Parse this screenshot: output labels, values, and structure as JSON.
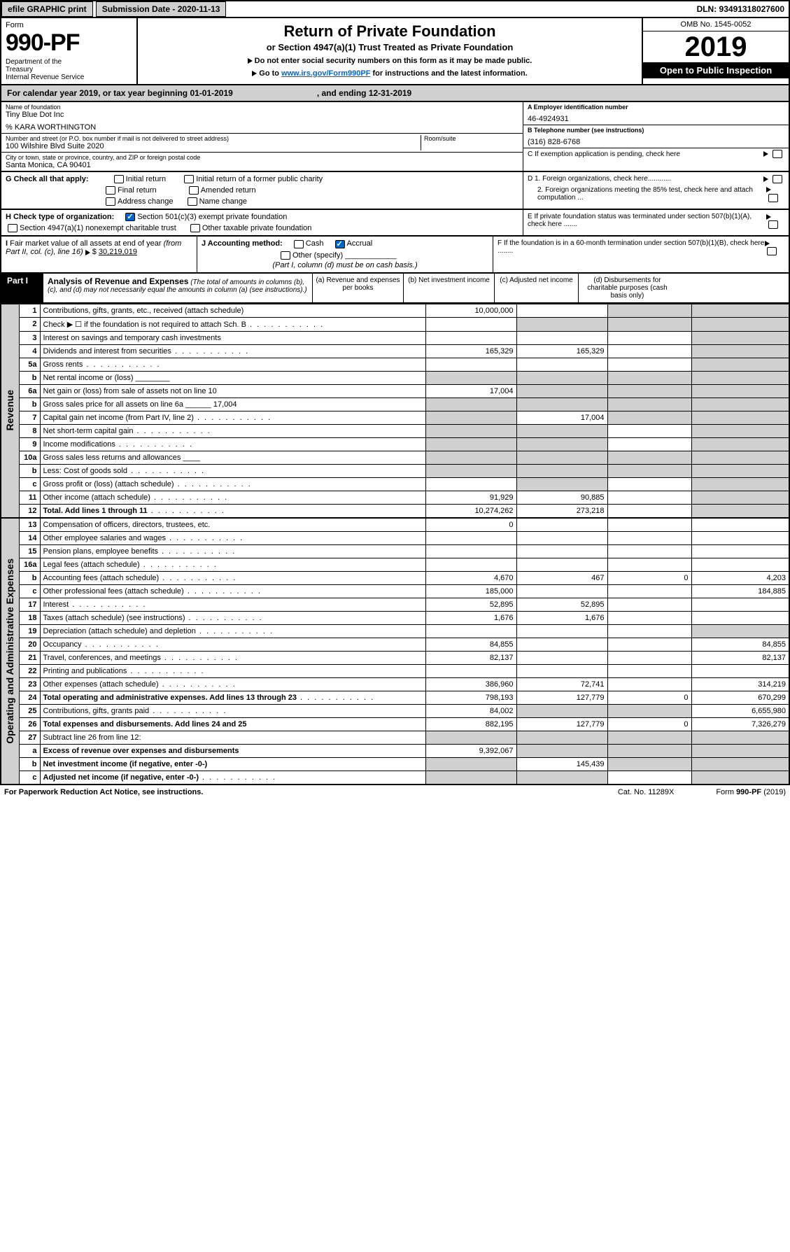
{
  "topbar": {
    "efile": "efile GRAPHIC print",
    "submission": "Submission Date - 2020-11-13",
    "dln": "DLN: 93491318027600"
  },
  "header": {
    "form_word": "Form",
    "form_num": "990-PF",
    "dept": "Department of the Treasury\nInternal Revenue Service",
    "title": "Return of Private Foundation",
    "subtitle": "or Section 4947(a)(1) Trust Treated as Private Foundation",
    "instr1": "Do not enter social security numbers on this form as it may be made public.",
    "instr2_pre": "Go to ",
    "instr2_link": "www.irs.gov/Form990PF",
    "instr2_post": " for instructions and the latest information.",
    "omb": "OMB No. 1545-0052",
    "year": "2019",
    "open": "Open to Public Inspection"
  },
  "calyear": {
    "left": "For calendar year 2019, or tax year beginning 01-01-2019",
    "right": ", and ending 12-31-2019"
  },
  "id": {
    "name_lbl": "Name of foundation",
    "name": "Tiny Blue Dot Inc",
    "care": "% KARA WORTHINGTON",
    "addr_lbl": "Number and street (or P.O. box number if mail is not delivered to street address)",
    "addr": "100 Wilshire Blvd Suite 2020",
    "room_lbl": "Room/suite",
    "city_lbl": "City or town, state or province, country, and ZIP or foreign postal code",
    "city": "Santa Monica, CA  90401",
    "ein_lbl": "A Employer identification number",
    "ein": "46-4924931",
    "tel_lbl": "B Telephone number (see instructions)",
    "tel": "(316) 828-6768",
    "c": "C If exemption application is pending, check here",
    "d1": "D 1. Foreign organizations, check here............",
    "d2": "2. Foreign organizations meeting the 85% test, check here and attach computation ...",
    "e": "E  If private foundation status was terminated under section 507(b)(1)(A), check here .......",
    "f": "F  If the foundation is in a 60-month termination under section 507(b)(1)(B), check here ........"
  },
  "g": {
    "label": "G Check all that apply:",
    "opts": [
      "Initial return",
      "Initial return of a former public charity",
      "Final return",
      "Amended return",
      "Address change",
      "Name change"
    ]
  },
  "h": {
    "label": "H Check type of organization:",
    "opt1": "Section 501(c)(3) exempt private foundation",
    "opt2": "Section 4947(a)(1) nonexempt charitable trust",
    "opt3": "Other taxable private foundation"
  },
  "i": {
    "label": "I Fair market value of all assets at end of year (from Part II, col. (c), line 16)",
    "val": "30,219,019"
  },
  "j": {
    "label": "J Accounting method:",
    "cash": "Cash",
    "accrual": "Accrual",
    "other": "Other (specify)",
    "note": "(Part I, column (d) must be on cash basis.)"
  },
  "part1": {
    "label": "Part I",
    "title": "Analysis of Revenue and Expenses",
    "sub": "(The total of amounts in columns (b), (c), and (d) may not necessarily equal the amounts in column (a) (see instructions).)",
    "colA": "(a)   Revenue and expenses per books",
    "colB": "(b)  Net investment income",
    "colC": "(c)  Adjusted net income",
    "colD": "(d)  Disbursements for charitable purposes (cash basis only)"
  },
  "side": {
    "rev": "Revenue",
    "exp": "Operating and Administrative Expenses"
  },
  "rows": [
    {
      "n": "1",
      "d": "Contributions, gifts, grants, etc., received (attach schedule)",
      "a": "10,000,000",
      "b": "",
      "c": "g",
      "dd": "g"
    },
    {
      "n": "2",
      "d": "Check ▶ ☐ if the foundation is not required to attach Sch. B",
      "a": "",
      "b": "g",
      "c": "g",
      "dd": "g",
      "dots": 1
    },
    {
      "n": "3",
      "d": "Interest on savings and temporary cash investments",
      "a": "",
      "b": "",
      "c": "",
      "dd": "g"
    },
    {
      "n": "4",
      "d": "Dividends and interest from securities",
      "a": "165,329",
      "b": "165,329",
      "c": "",
      "dd": "g",
      "dots": 1
    },
    {
      "n": "5a",
      "d": "Gross rents",
      "a": "",
      "b": "",
      "c": "",
      "dd": "g",
      "dots": 1
    },
    {
      "n": "b",
      "d": "Net rental income or (loss)  ________",
      "a": "g",
      "b": "g",
      "c": "g",
      "dd": "g"
    },
    {
      "n": "6a",
      "d": "Net gain or (loss) from sale of assets not on line 10",
      "a": "17,004",
      "b": "g",
      "c": "g",
      "dd": "g"
    },
    {
      "n": "b",
      "d": "Gross sales price for all assets on line 6a ______ 17,004",
      "a": "g",
      "b": "g",
      "c": "g",
      "dd": "g"
    },
    {
      "n": "7",
      "d": "Capital gain net income (from Part IV, line 2)",
      "a": "g",
      "b": "17,004",
      "c": "g",
      "dd": "g",
      "dots": 1
    },
    {
      "n": "8",
      "d": "Net short-term capital gain",
      "a": "g",
      "b": "g",
      "c": "",
      "dd": "g",
      "dots": 1
    },
    {
      "n": "9",
      "d": "Income modifications",
      "a": "g",
      "b": "g",
      "c": "",
      "dd": "g",
      "dots": 1
    },
    {
      "n": "10a",
      "d": "Gross sales less returns and allowances  ____",
      "a": "g",
      "b": "g",
      "c": "g",
      "dd": "g"
    },
    {
      "n": "b",
      "d": "Less: Cost of goods sold",
      "a": "g",
      "b": "g",
      "c": "g",
      "dd": "g",
      "dots": 1
    },
    {
      "n": "c",
      "d": "Gross profit or (loss) (attach schedule)",
      "a": "",
      "b": "g",
      "c": "",
      "dd": "g",
      "dots": 1
    },
    {
      "n": "11",
      "d": "Other income (attach schedule)",
      "a": "91,929",
      "b": "90,885",
      "c": "",
      "dd": "g",
      "dots": 1
    },
    {
      "n": "12",
      "d": "Total. Add lines 1 through 11",
      "a": "10,274,262",
      "b": "273,218",
      "c": "",
      "dd": "g",
      "bold": 1,
      "dots": 1
    }
  ],
  "exprows": [
    {
      "n": "13",
      "d": "Compensation of officers, directors, trustees, etc.",
      "a": "0",
      "b": "",
      "c": "",
      "dd": ""
    },
    {
      "n": "14",
      "d": "Other employee salaries and wages",
      "a": "",
      "b": "",
      "c": "",
      "dd": "",
      "dots": 1
    },
    {
      "n": "15",
      "d": "Pension plans, employee benefits",
      "a": "",
      "b": "",
      "c": "",
      "dd": "",
      "dots": 1
    },
    {
      "n": "16a",
      "d": "Legal fees (attach schedule)",
      "a": "",
      "b": "",
      "c": "",
      "dd": "",
      "dots": 1
    },
    {
      "n": "b",
      "d": "Accounting fees (attach schedule)",
      "a": "4,670",
      "b": "467",
      "c": "0",
      "dd": "4,203",
      "dots": 1
    },
    {
      "n": "c",
      "d": "Other professional fees (attach schedule)",
      "a": "185,000",
      "b": "",
      "c": "",
      "dd": "184,885",
      "dots": 1
    },
    {
      "n": "17",
      "d": "Interest",
      "a": "52,895",
      "b": "52,895",
      "c": "",
      "dd": "",
      "dots": 1
    },
    {
      "n": "18",
      "d": "Taxes (attach schedule) (see instructions)",
      "a": "1,676",
      "b": "1,676",
      "c": "",
      "dd": "",
      "dots": 1
    },
    {
      "n": "19",
      "d": "Depreciation (attach schedule) and depletion",
      "a": "",
      "b": "",
      "c": "",
      "dd": "g",
      "dots": 1
    },
    {
      "n": "20",
      "d": "Occupancy",
      "a": "84,855",
      "b": "",
      "c": "",
      "dd": "84,855",
      "dots": 1
    },
    {
      "n": "21",
      "d": "Travel, conferences, and meetings",
      "a": "82,137",
      "b": "",
      "c": "",
      "dd": "82,137",
      "dots": 1
    },
    {
      "n": "22",
      "d": "Printing and publications",
      "a": "",
      "b": "",
      "c": "",
      "dd": "",
      "dots": 1
    },
    {
      "n": "23",
      "d": "Other expenses (attach schedule)",
      "a": "386,960",
      "b": "72,741",
      "c": "",
      "dd": "314,219",
      "dots": 1
    },
    {
      "n": "24",
      "d": "Total operating and administrative expenses. Add lines 13 through 23",
      "a": "798,193",
      "b": "127,779",
      "c": "0",
      "dd": "670,299",
      "bold": 1,
      "dots": 1
    },
    {
      "n": "25",
      "d": "Contributions, gifts, grants paid",
      "a": "84,002",
      "b": "g",
      "c": "g",
      "dd": "6,655,980",
      "dots": 1
    },
    {
      "n": "26",
      "d": "Total expenses and disbursements. Add lines 24 and 25",
      "a": "882,195",
      "b": "127,779",
      "c": "0",
      "dd": "7,326,279",
      "bold": 1
    },
    {
      "n": "27",
      "d": "Subtract line 26 from line 12:",
      "a": "g",
      "b": "g",
      "c": "g",
      "dd": "g"
    },
    {
      "n": "a",
      "d": "Excess of revenue over expenses and disbursements",
      "a": "9,392,067",
      "b": "g",
      "c": "g",
      "dd": "g",
      "bold": 1
    },
    {
      "n": "b",
      "d": "Net investment income (if negative, enter -0-)",
      "a": "g",
      "b": "145,439",
      "c": "g",
      "dd": "g",
      "bold": 1
    },
    {
      "n": "c",
      "d": "Adjusted net income (if negative, enter -0-)",
      "a": "g",
      "b": "g",
      "c": "",
      "dd": "g",
      "bold": 1,
      "dots": 1
    }
  ],
  "footer": {
    "left": "For Paperwork Reduction Act Notice, see instructions.",
    "cat": "Cat. No. 11289X",
    "form": "Form 990-PF (2019)"
  },
  "colors": {
    "grey": "#d0d0d0",
    "link": "#0066cc"
  }
}
